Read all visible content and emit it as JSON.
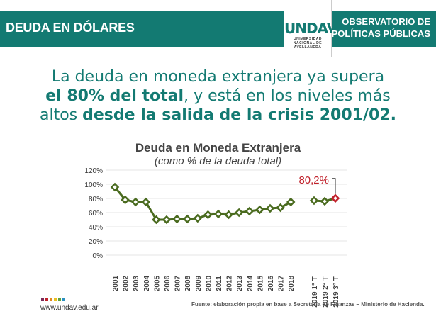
{
  "header": {
    "left_title": "DEUDA EN DÓLARES",
    "logo_mark": "UNDAV",
    "logo_sub": [
      "UNIVERSIDAD",
      "NACIONAL DE",
      "AVELLANEDA"
    ],
    "observatory": [
      "OBSERVATORIO DE",
      "POLÍTICAS PÚBLICAS"
    ]
  },
  "headline": {
    "p1": "La deuda en moneda extranjera ya supera",
    "p2b": "el 80% del total",
    "p2": ", y está en los niveles más",
    "p3": "altos ",
    "p3b": "desde la salida de la crisis 2001/02."
  },
  "colors": {
    "brand": "#137a72",
    "series": "#4a6b1f",
    "highlight": "#c0202a"
  },
  "chart_data": {
    "type": "line",
    "title": "Deuda en Moneda Extranjera",
    "subtitle": "(como % de la deuda total)",
    "ylim": [
      0,
      120
    ],
    "yticks": [
      "0%",
      "20%",
      "40%",
      "60%",
      "80%",
      "100%",
      "120%"
    ],
    "grid": true,
    "categories": [
      "2001",
      "2002",
      "2003",
      "2004",
      "2005",
      "2006",
      "2007",
      "2008",
      "2009",
      "2010",
      "2011",
      "2012",
      "2013",
      "2014",
      "2015",
      "2016",
      "2017",
      "2018",
      "2019 1° T",
      "2019 2° T",
      "2019 3° T"
    ],
    "values": [
      96,
      78,
      75,
      75,
      50,
      50,
      51,
      51,
      52,
      57,
      58,
      57,
      60,
      62,
      64,
      66,
      67,
      75,
      77,
      76,
      80.2
    ],
    "annotation": "80,2%"
  },
  "footer": {
    "url": "www.undav.edu.ar",
    "source": "Fuente: elaboración propia en base a Secretaría de Finanzas – Ministerio de Hacienda."
  }
}
